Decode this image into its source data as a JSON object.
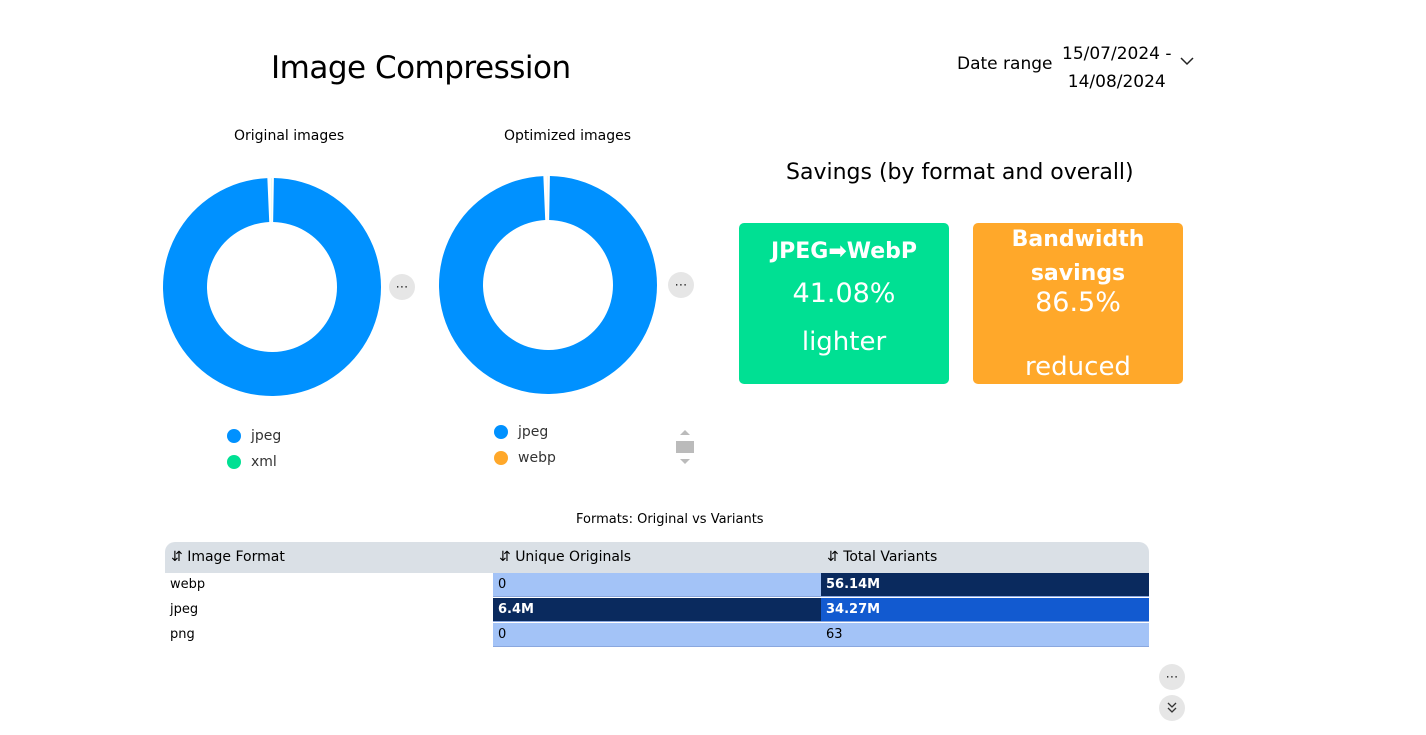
{
  "header": {
    "title": "Image Compression",
    "date_range_label": "Date range",
    "date_start": "15/07/2024 -",
    "date_end": "14/08/2024"
  },
  "chart_data": [
    {
      "type": "pie",
      "title": "Original images",
      "categories": [
        "jpeg",
        "xml"
      ],
      "values": [
        99.6,
        0.4
      ],
      "colors": [
        "#0091ff",
        "#00e093"
      ],
      "donut": true,
      "legend": "bottom"
    },
    {
      "type": "pie",
      "title": "Optimized images",
      "categories": [
        "jpeg",
        "webp"
      ],
      "values": [
        99.6,
        0.4
      ],
      "colors": [
        "#0091ff",
        "#ffa82a"
      ],
      "donut": true,
      "legend": "bottom"
    }
  ],
  "savings": {
    "title": "Savings (by format and overall)",
    "cards": [
      {
        "heading": "JPEG➡WebP",
        "value": "41.08%",
        "sub": "lighter",
        "color": "#00e093"
      },
      {
        "heading": "Bandwidth savings",
        "value": "86.5%",
        "sub": "reduced",
        "color": "#ffa82a"
      }
    ]
  },
  "table": {
    "title": "Formats: Original vs Variants",
    "columns": [
      "Image Format",
      "Unique Originals",
      "Total Variants"
    ],
    "sort_icon": "⇵",
    "rows": [
      [
        "webp",
        "0",
        "56.14M"
      ],
      [
        "jpeg",
        "6.4M",
        "34.27M"
      ],
      [
        "png",
        "0",
        "63"
      ]
    ]
  },
  "icons": {
    "more": "⋯",
    "expand": "double-chevron-down"
  }
}
